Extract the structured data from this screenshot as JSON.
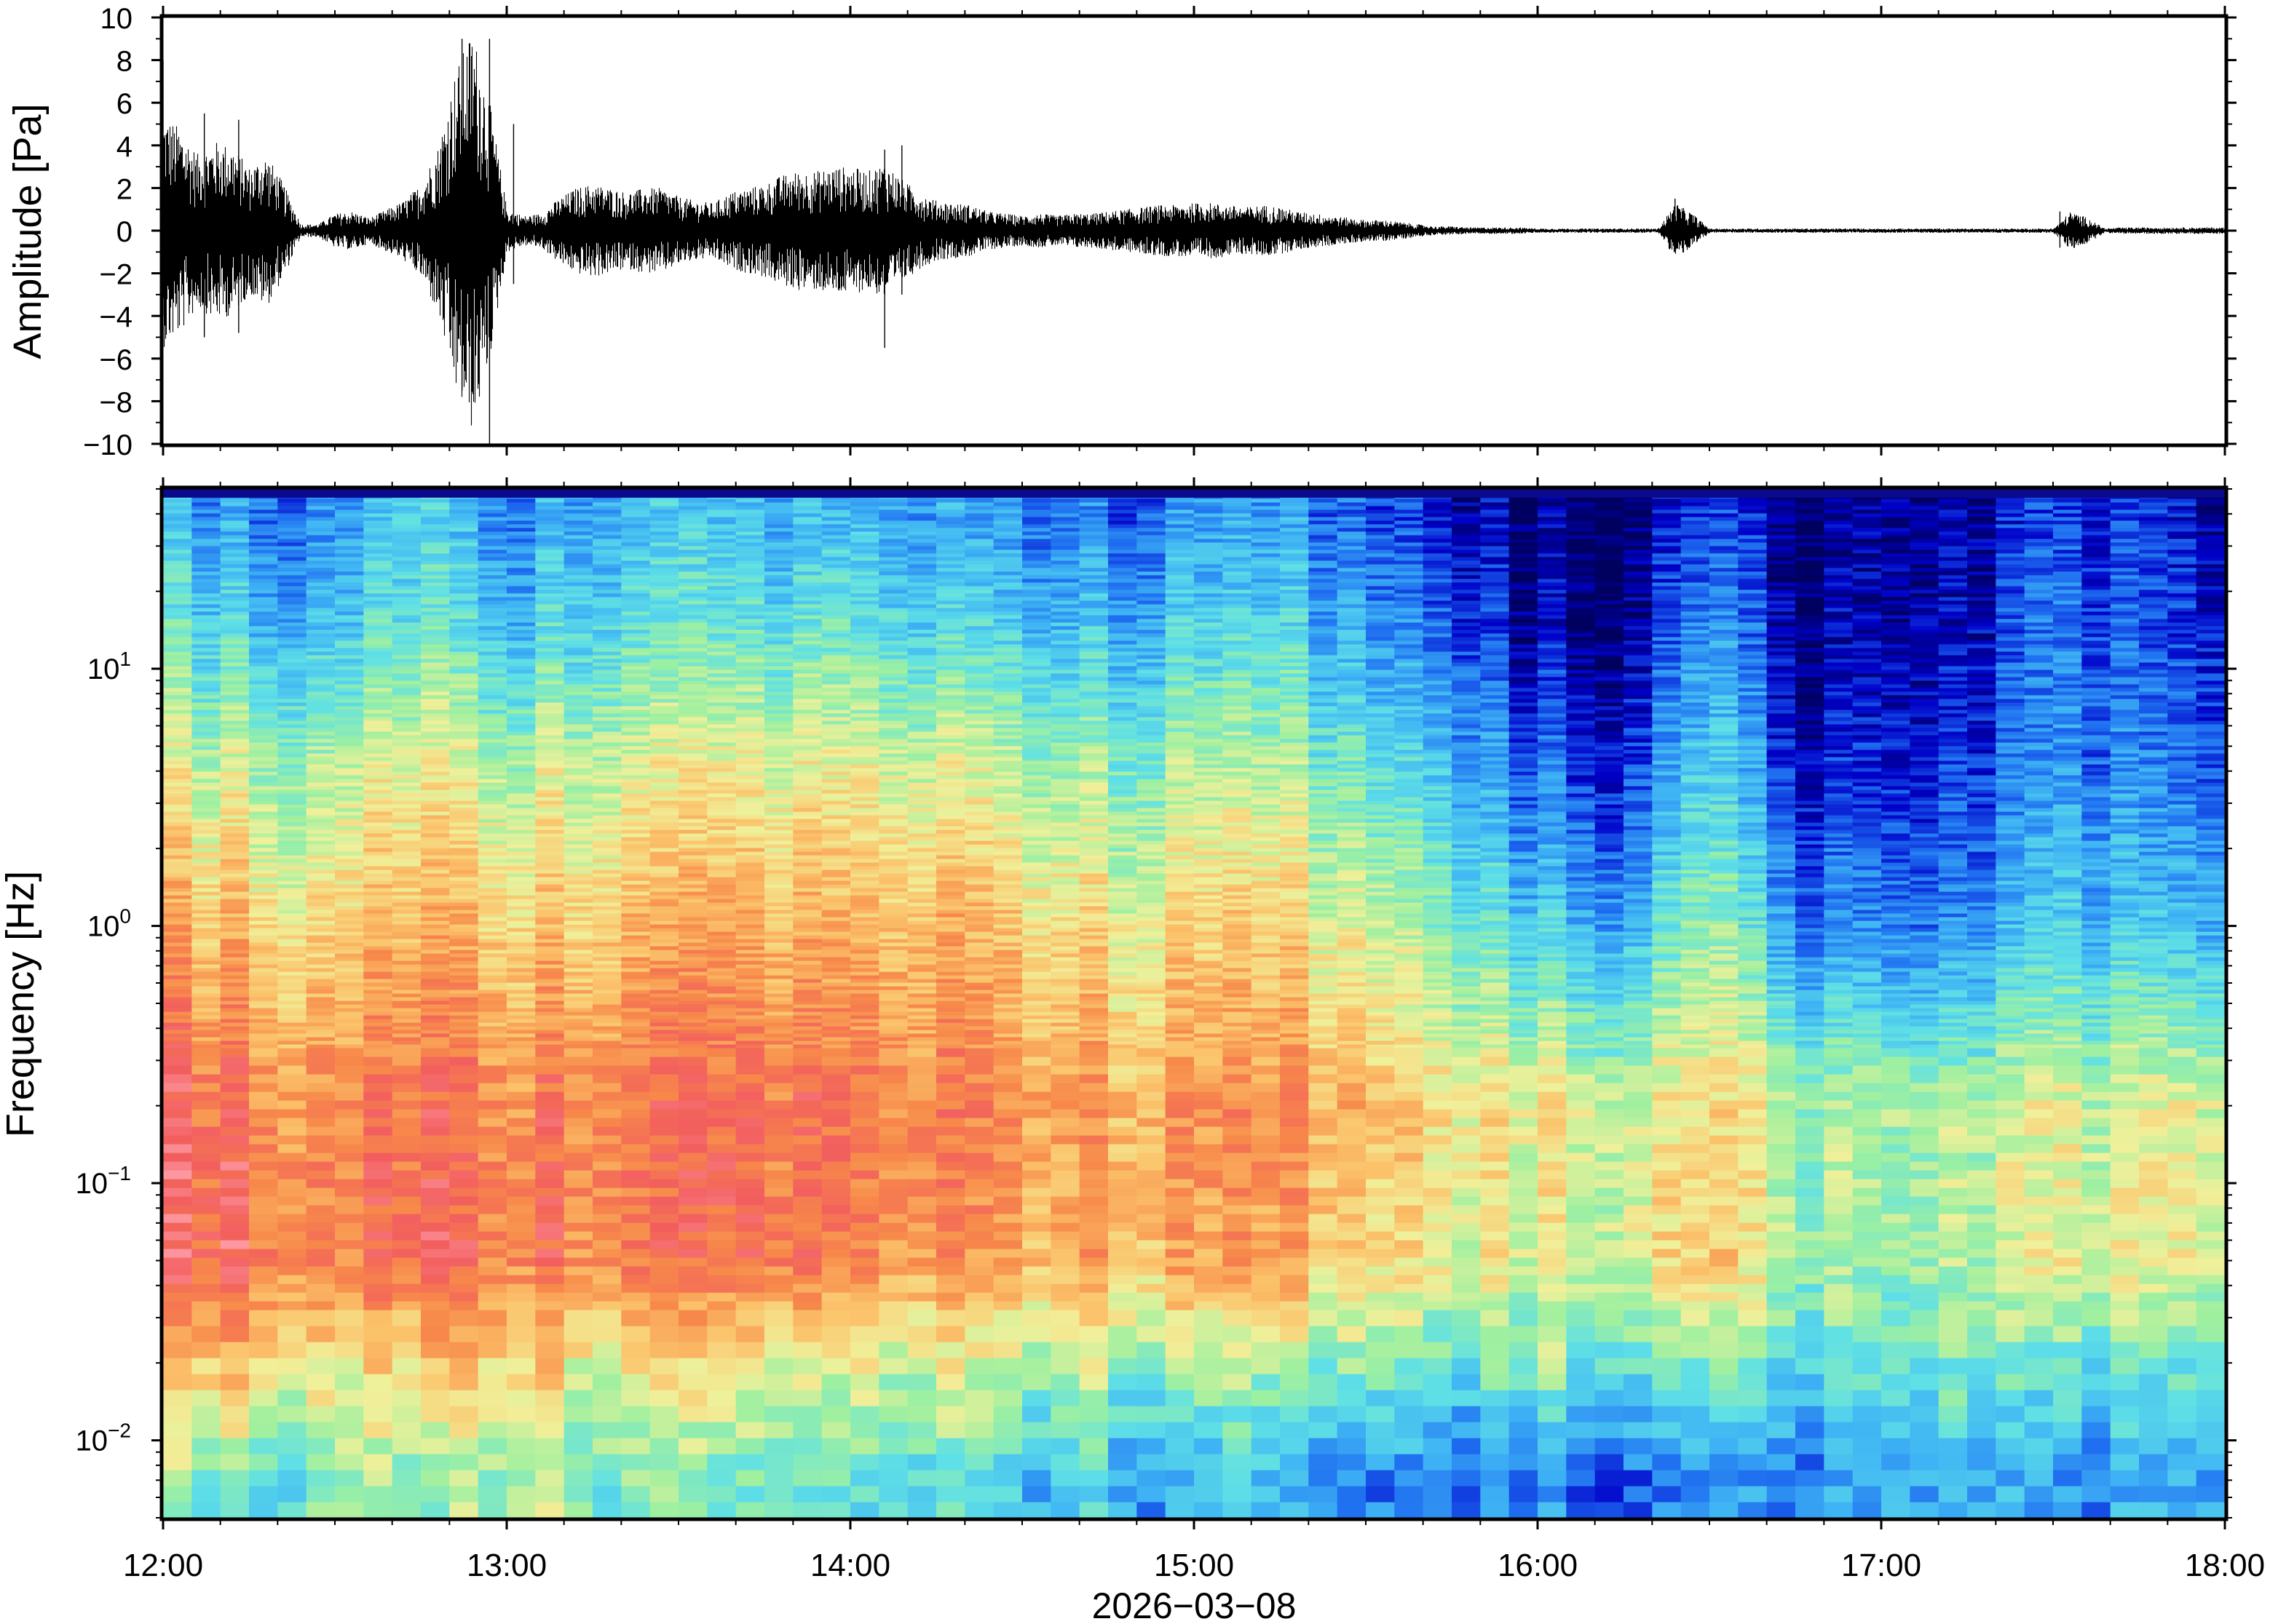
{
  "chart_data": [
    {
      "type": "line",
      "panel": "waveform",
      "ylabel": "Amplitude [Pa]",
      "ylim": [
        -10,
        10
      ],
      "yticks": [
        {
          "value": -10,
          "label": "−10"
        },
        {
          "value": -8,
          "label": "−8"
        },
        {
          "value": -6,
          "label": "−6"
        },
        {
          "value": -4,
          "label": "−4"
        },
        {
          "value": -2,
          "label": "−2"
        },
        {
          "value": 0,
          "label": "0"
        },
        {
          "value": 2,
          "label": "2"
        },
        {
          "value": 4,
          "label": "4"
        },
        {
          "value": 6,
          "label": "6"
        },
        {
          "value": 8,
          "label": "8"
        },
        {
          "value": 10,
          "label": "10"
        }
      ],
      "xlim_hours": [
        12,
        18
      ],
      "line_color": "#000000",
      "envelope": {
        "hours": [
          12.0,
          12.05,
          12.1,
          12.15,
          12.2,
          12.25,
          12.3,
          12.35,
          12.4,
          12.45,
          12.5,
          12.55,
          12.6,
          12.65,
          12.7,
          12.75,
          12.8,
          12.85,
          12.9,
          12.95,
          13.0,
          13.05,
          13.1,
          13.15,
          13.2,
          13.25,
          13.3,
          13.35,
          13.4,
          13.45,
          13.5,
          13.55,
          13.6,
          13.65,
          13.7,
          13.75,
          13.8,
          13.85,
          13.9,
          13.95,
          14.0,
          14.05,
          14.1,
          14.15,
          14.2,
          14.25,
          14.3,
          14.35,
          14.4,
          14.45,
          14.5,
          14.55,
          14.6,
          14.65,
          14.7,
          14.75,
          14.8,
          14.85,
          14.9,
          14.95,
          15.0,
          15.05,
          15.1,
          15.15,
          15.2,
          15.25,
          15.3,
          15.35,
          15.4,
          15.45,
          15.5,
          15.55,
          15.6,
          15.65,
          15.7,
          15.75,
          15.8,
          15.85,
          15.9,
          15.95,
          16.0,
          16.05,
          16.1,
          16.15,
          16.2,
          16.25,
          16.3,
          16.35,
          16.4,
          16.45,
          16.5,
          16.55,
          16.6,
          16.65,
          16.7,
          16.75,
          16.8,
          16.85,
          16.9,
          16.95,
          17.0,
          17.05,
          17.1,
          17.15,
          17.2,
          17.25,
          17.3,
          17.35,
          17.4,
          17.45,
          17.5,
          17.55,
          17.6,
          17.65,
          17.7,
          17.75,
          17.8,
          17.85,
          17.9,
          17.95,
          18.0
        ],
        "amplitude": [
          5.5,
          4.8,
          3.6,
          4.2,
          4.0,
          3.0,
          3.6,
          2.2,
          0.3,
          0.3,
          0.8,
          0.9,
          0.6,
          1.0,
          1.4,
          2.2,
          4.0,
          7.5,
          9.5,
          6.0,
          1.0,
          0.7,
          0.8,
          1.5,
          2.0,
          2.2,
          2.0,
          1.8,
          2.0,
          2.0,
          1.6,
          1.4,
          1.3,
          1.8,
          2.0,
          2.2,
          2.6,
          2.8,
          2.8,
          3.0,
          3.0,
          2.8,
          3.2,
          2.4,
          1.8,
          1.4,
          1.3,
          1.2,
          0.9,
          0.8,
          0.7,
          0.8,
          0.7,
          0.8,
          0.8,
          0.9,
          1.0,
          1.1,
          1.2,
          1.2,
          1.3,
          1.3,
          1.2,
          1.1,
          1.2,
          1.1,
          0.9,
          0.8,
          0.7,
          0.6,
          0.5,
          0.5,
          0.4,
          0.3,
          0.2,
          0.2,
          0.15,
          0.15,
          0.15,
          0.15,
          0.1,
          0.1,
          0.1,
          0.1,
          0.1,
          0.1,
          0.1,
          0.1,
          1.3,
          0.8,
          0.1,
          0.1,
          0.1,
          0.1,
          0.1,
          0.1,
          0.1,
          0.1,
          0.1,
          0.1,
          0.1,
          0.1,
          0.1,
          0.1,
          0.1,
          0.1,
          0.1,
          0.1,
          0.1,
          0.1,
          0.1,
          0.9,
          0.6,
          0.1,
          0.15,
          0.15,
          0.15,
          0.15,
          0.15,
          0.15,
          0.15
        ]
      },
      "spikes": [
        {
          "hour": 12.0,
          "min": -4.0,
          "max": 8.0
        },
        {
          "hour": 12.12,
          "min": -5.0,
          "max": 5.5
        },
        {
          "hour": 12.22,
          "min": -4.8,
          "max": 5.2
        },
        {
          "hour": 12.87,
          "min": -7.5,
          "max": 9.0
        },
        {
          "hour": 12.95,
          "min": -10.0,
          "max": 9.0
        },
        {
          "hour": 13.02,
          "min": -2.5,
          "max": 5.0
        },
        {
          "hour": 14.1,
          "min": -5.5,
          "max": 3.8
        },
        {
          "hour": 14.15,
          "min": -3.0,
          "max": 4.0
        },
        {
          "hour": 16.4,
          "min": -1.0,
          "max": 1.5
        },
        {
          "hour": 17.52,
          "min": -0.8,
          "max": 0.9
        }
      ]
    },
    {
      "type": "heatmap",
      "panel": "spectrogram",
      "ylabel": "Frequency [Hz]",
      "xlabel": "2026−03−08",
      "yscale": "log",
      "ylim": [
        0.005,
        50
      ],
      "yticks": [
        {
          "value": 0.01,
          "base": "10",
          "exp": "−2"
        },
        {
          "value": 0.1,
          "base": "10",
          "exp": "−1"
        },
        {
          "value": 1,
          "base": "10",
          "exp": "0"
        },
        {
          "value": 10,
          "base": "10",
          "exp": "1"
        }
      ],
      "xticks": [
        {
          "hour": 12,
          "label": "12:00"
        },
        {
          "hour": 13,
          "label": "13:00"
        },
        {
          "hour": 14,
          "label": "14:00"
        },
        {
          "hour": 15,
          "label": "15:00"
        },
        {
          "hour": 16,
          "label": "16:00"
        },
        {
          "hour": 17,
          "label": "17:00"
        },
        {
          "hour": 18,
          "label": "18:00"
        }
      ],
      "colormap": "rainbow (dark blue = low power, red/pink = high power)",
      "colormap_stops": [
        "#00005e",
        "#0000c8",
        "#1e6cf0",
        "#3fb4f4",
        "#5fe0e6",
        "#9ef0a0",
        "#f0f09a",
        "#fbc26a",
        "#f7894a",
        "#f25e5e",
        "#ff9ea8"
      ],
      "relative_power_level": {
        "frequency_bands_hz": [
          0.007,
          0.02,
          0.05,
          0.2,
          1,
          4,
          15,
          40
        ],
        "time_columns_hours": [
          12.0,
          12.25,
          12.5,
          12.75,
          13.0,
          13.25,
          13.5,
          13.75,
          14.0,
          14.25,
          14.5,
          14.75,
          15.0,
          15.25,
          15.5,
          15.75,
          16.0,
          16.25,
          16.5,
          16.75,
          17.0,
          17.25,
          17.5,
          17.75,
          18.0
        ],
        "levels": [
          [
            0.5,
            0.45,
            0.45,
            0.48,
            0.52,
            0.45,
            0.42,
            0.42,
            0.45,
            0.38,
            0.3,
            0.32,
            0.3,
            0.28,
            0.25,
            0.22,
            0.22,
            0.2,
            0.28,
            0.22,
            0.25,
            0.28,
            0.25,
            0.25,
            0.3
          ],
          [
            0.74,
            0.7,
            0.6,
            0.68,
            0.66,
            0.6,
            0.58,
            0.6,
            0.62,
            0.56,
            0.5,
            0.52,
            0.52,
            0.5,
            0.48,
            0.45,
            0.45,
            0.42,
            0.5,
            0.4,
            0.38,
            0.4,
            0.42,
            0.4,
            0.42
          ],
          [
            0.92,
            0.9,
            0.76,
            0.9,
            0.82,
            0.8,
            0.8,
            0.84,
            0.86,
            0.76,
            0.7,
            0.72,
            0.74,
            0.72,
            0.68,
            0.62,
            0.58,
            0.58,
            0.74,
            0.5,
            0.46,
            0.48,
            0.6,
            0.56,
            0.58
          ],
          [
            0.9,
            0.86,
            0.76,
            0.88,
            0.8,
            0.82,
            0.82,
            0.84,
            0.88,
            0.8,
            0.74,
            0.74,
            0.78,
            0.76,
            0.72,
            0.66,
            0.6,
            0.56,
            0.7,
            0.5,
            0.48,
            0.48,
            0.58,
            0.55,
            0.58
          ],
          [
            0.74,
            0.7,
            0.62,
            0.76,
            0.66,
            0.68,
            0.7,
            0.72,
            0.76,
            0.7,
            0.64,
            0.62,
            0.66,
            0.64,
            0.58,
            0.5,
            0.34,
            0.3,
            0.56,
            0.24,
            0.2,
            0.2,
            0.36,
            0.3,
            0.32
          ],
          [
            0.6,
            0.56,
            0.5,
            0.64,
            0.52,
            0.56,
            0.56,
            0.58,
            0.64,
            0.56,
            0.5,
            0.48,
            0.52,
            0.5,
            0.44,
            0.36,
            0.18,
            0.14,
            0.44,
            0.1,
            0.1,
            0.1,
            0.26,
            0.2,
            0.2
          ],
          [
            0.42,
            0.36,
            0.3,
            0.46,
            0.32,
            0.38,
            0.38,
            0.4,
            0.46,
            0.36,
            0.3,
            0.3,
            0.36,
            0.34,
            0.28,
            0.22,
            0.06,
            0.04,
            0.32,
            0.04,
            0.04,
            0.04,
            0.22,
            0.14,
            0.12
          ],
          [
            0.32,
            0.26,
            0.22,
            0.4,
            0.22,
            0.3,
            0.3,
            0.3,
            0.36,
            0.26,
            0.2,
            0.2,
            0.26,
            0.24,
            0.2,
            0.14,
            0.02,
            0.02,
            0.22,
            0.02,
            0.02,
            0.02,
            0.16,
            0.1,
            0.08
          ]
        ]
      }
    }
  ]
}
